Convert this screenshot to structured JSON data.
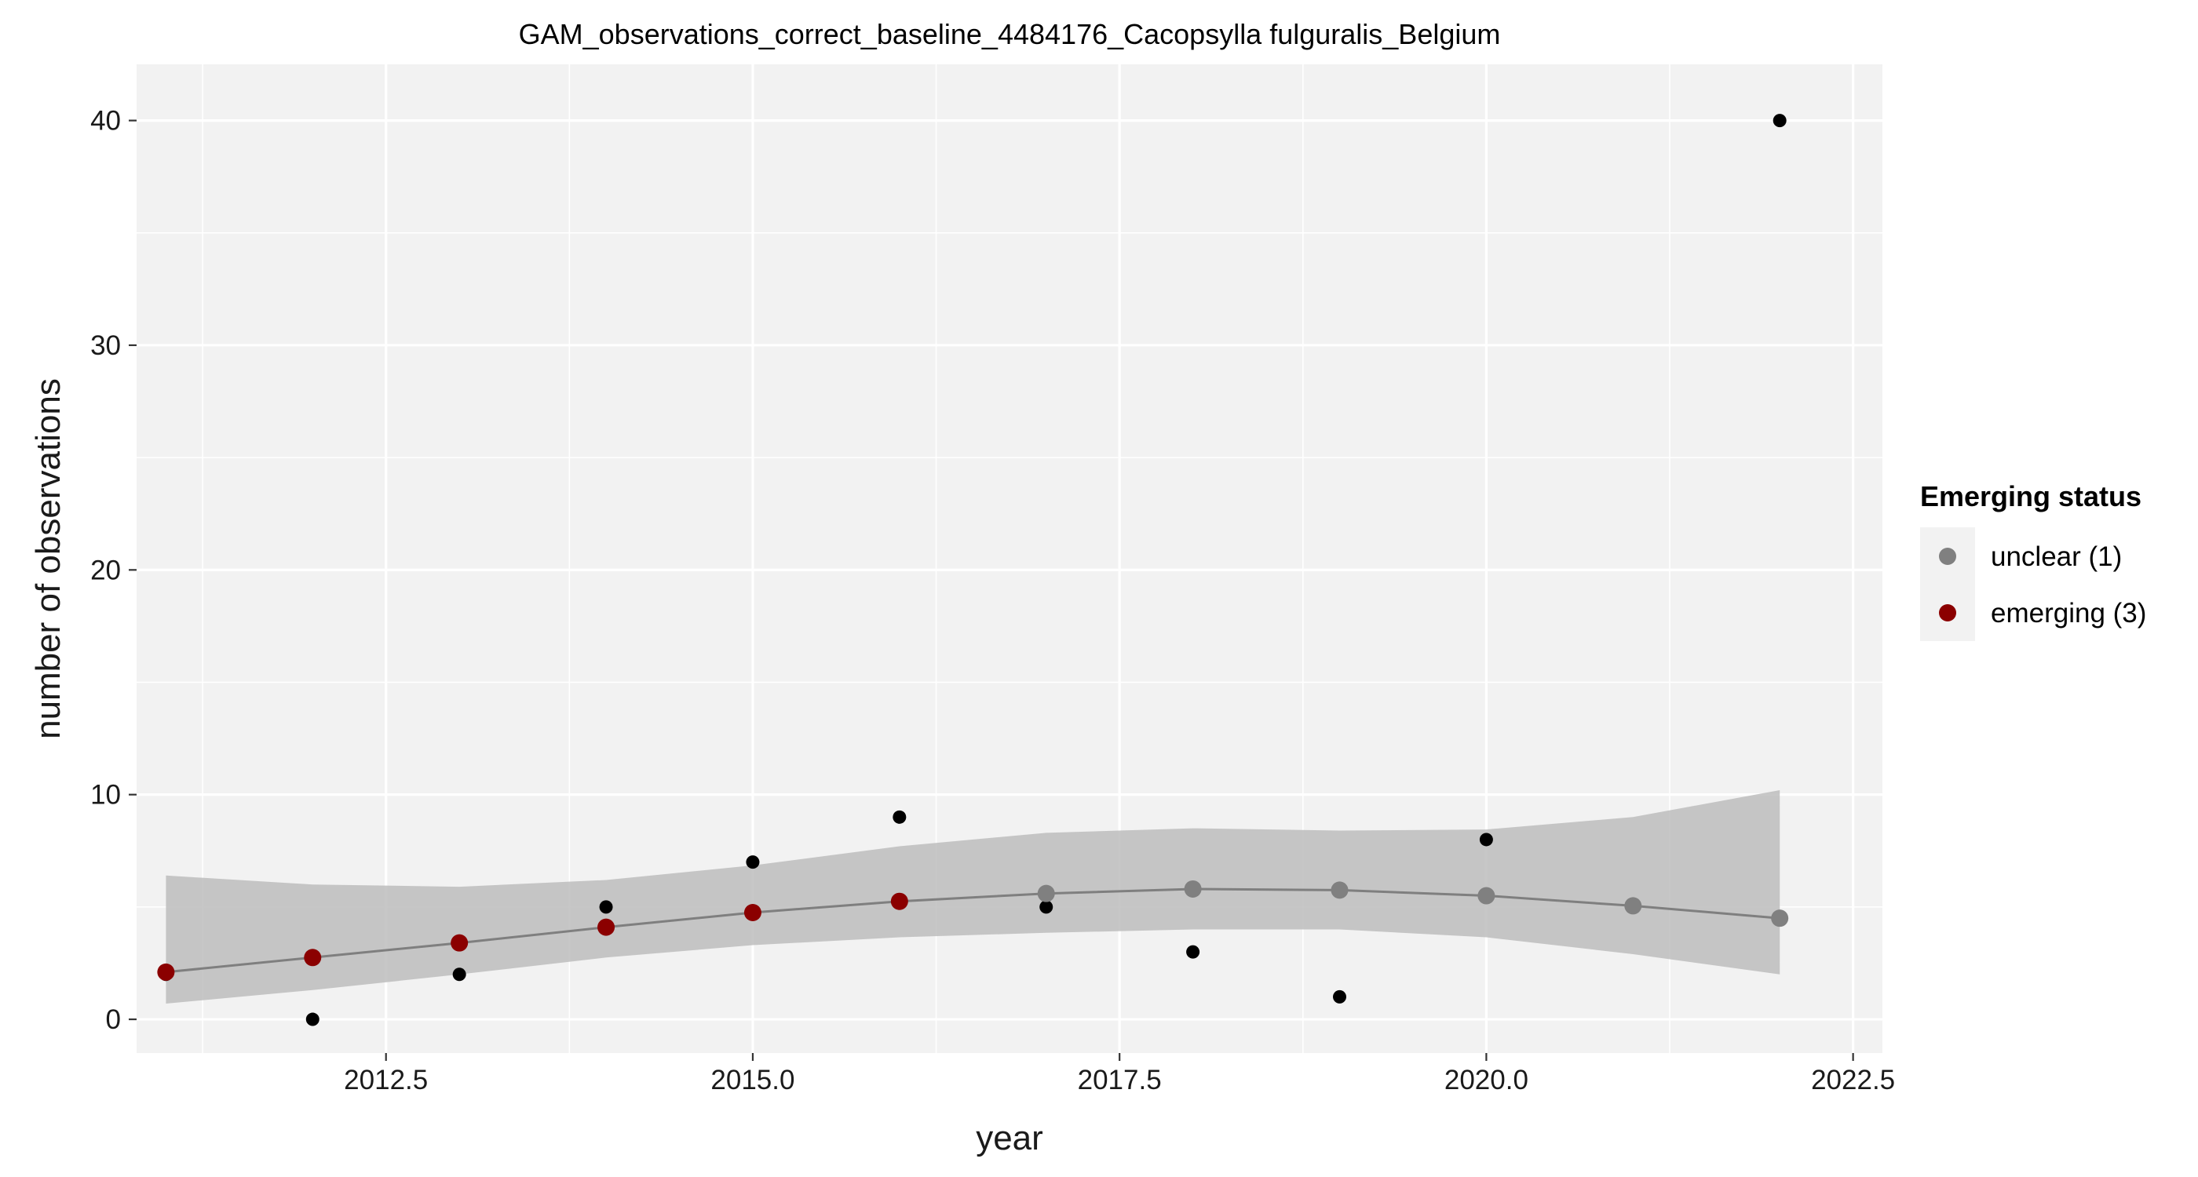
{
  "chart_data": {
    "type": "scatter",
    "title": "GAM_observations_correct_baseline_4484176_Cacopsylla fulguralis_Belgium",
    "xlabel": "year",
    "ylabel": "number of observations",
    "xlim": [
      2010.8,
      2022.7
    ],
    "ylim": [
      -1.5,
      42.5
    ],
    "x_ticks": [
      2012.5,
      2015.0,
      2017.5,
      2020.0,
      2022.5
    ],
    "x_tick_labels": [
      "2012.5",
      "2015.0",
      "2017.5",
      "2020.0",
      "2022.5"
    ],
    "y_ticks": [
      0,
      10,
      20,
      30,
      40
    ],
    "y_tick_labels": [
      "0",
      "10",
      "20",
      "30",
      "40"
    ],
    "grid": true,
    "observations": {
      "x": [
        2011,
        2012,
        2013,
        2014,
        2015,
        2016,
        2017,
        2018,
        2019,
        2020,
        2021,
        2022
      ],
      "y": [
        2,
        0,
        2,
        5,
        7,
        9,
        5,
        3,
        1,
        8,
        5,
        40
      ]
    },
    "gam_fit": {
      "x": [
        2011,
        2012,
        2013,
        2014,
        2015,
        2016,
        2017,
        2018,
        2019,
        2020,
        2021,
        2022
      ],
      "y": [
        2.1,
        2.75,
        3.4,
        4.1,
        4.75,
        5.25,
        5.6,
        5.8,
        5.75,
        5.5,
        5.05,
        4.5
      ],
      "lower": [
        0.7,
        1.3,
        2.0,
        2.75,
        3.3,
        3.65,
        3.85,
        4.0,
        4.0,
        3.65,
        2.9,
        2.0
      ],
      "upper": [
        6.4,
        6.0,
        5.9,
        6.2,
        6.85,
        7.7,
        8.3,
        8.5,
        8.4,
        8.45,
        9.0,
        10.2
      ],
      "status": [
        "emerging (3)",
        "emerging (3)",
        "emerging (3)",
        "emerging (3)",
        "emerging (3)",
        "emerging (3)",
        "unclear (1)",
        "unclear (1)",
        "unclear (1)",
        "unclear (1)",
        "unclear (1)",
        "unclear (1)"
      ]
    },
    "legend": {
      "title": "Emerging status",
      "placement": "right",
      "items": [
        {
          "label": "unclear (1)",
          "color": "#808080"
        },
        {
          "label": "emerging (3)",
          "color": "#8b0000"
        }
      ]
    },
    "colors": {
      "observation": "#000000",
      "fit_line": "#7f7f7f",
      "ribbon": "#bdbdbd",
      "panel": "#f2f2f2",
      "grid": "#ffffff"
    }
  }
}
